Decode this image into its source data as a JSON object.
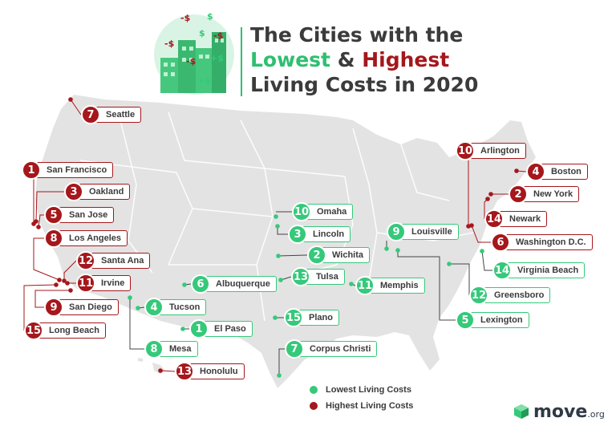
{
  "title": {
    "line1": "The Cities with the",
    "lowest": "Lowest",
    "amp": " & ",
    "highest": "Highest",
    "line3": "Living Costs in 2020"
  },
  "colors": {
    "low": "#35c97a",
    "high": "#a5171b",
    "map": "#e3e3e3",
    "text": "#3b3b3b"
  },
  "legend": {
    "low": "Lowest Living Costs",
    "high": "Highest Living Costs"
  },
  "logo": {
    "main": "move",
    "sub": ".org",
    "icon": "cube-logo-icon"
  },
  "cities": [
    {
      "id": "seattle",
      "type": "high",
      "rank": "7",
      "name": "Seattle"
    },
    {
      "id": "san-francisco",
      "type": "high",
      "rank": "1",
      "name": "San Francisco"
    },
    {
      "id": "oakland",
      "type": "high",
      "rank": "3",
      "name": "Oakland"
    },
    {
      "id": "san-jose",
      "type": "high",
      "rank": "5",
      "name": "San Jose"
    },
    {
      "id": "los-angeles",
      "type": "high",
      "rank": "8",
      "name": "Los Angeles"
    },
    {
      "id": "santa-ana",
      "type": "high",
      "rank": "12",
      "name": "Santa Ana"
    },
    {
      "id": "irvine",
      "type": "high",
      "rank": "11",
      "name": "Irvine"
    },
    {
      "id": "san-diego",
      "type": "high",
      "rank": "9",
      "name": "San Diego"
    },
    {
      "id": "long-beach",
      "type": "high",
      "rank": "15",
      "name": "Long Beach"
    },
    {
      "id": "honolulu",
      "type": "high",
      "rank": "13",
      "name": "Honolulu"
    },
    {
      "id": "arlington",
      "type": "high",
      "rank": "10",
      "name": "Arlington"
    },
    {
      "id": "boston",
      "type": "high",
      "rank": "4",
      "name": "Boston"
    },
    {
      "id": "new-york",
      "type": "high",
      "rank": "2",
      "name": "New York"
    },
    {
      "id": "newark",
      "type": "high",
      "rank": "14",
      "name": "Newark"
    },
    {
      "id": "washington-dc",
      "type": "high",
      "rank": "6",
      "name": "Washington D.C."
    },
    {
      "id": "omaha",
      "type": "low",
      "rank": "10",
      "name": "Omaha"
    },
    {
      "id": "lincoln",
      "type": "low",
      "rank": "3",
      "name": "Lincoln"
    },
    {
      "id": "wichita",
      "type": "low",
      "rank": "2",
      "name": "Wichita"
    },
    {
      "id": "tulsa",
      "type": "low",
      "rank": "13",
      "name": "Tulsa"
    },
    {
      "id": "albuquerque",
      "type": "low",
      "rank": "6",
      "name": "Albuquerque"
    },
    {
      "id": "tucson",
      "type": "low",
      "rank": "4",
      "name": "Tucson"
    },
    {
      "id": "el-paso",
      "type": "low",
      "rank": "1",
      "name": "El Paso"
    },
    {
      "id": "mesa",
      "type": "low",
      "rank": "8",
      "name": "Mesa"
    },
    {
      "id": "plano",
      "type": "low",
      "rank": "15",
      "name": "Plano"
    },
    {
      "id": "corpus-christi",
      "type": "low",
      "rank": "7",
      "name": "Corpus Christi"
    },
    {
      "id": "louisville",
      "type": "low",
      "rank": "9",
      "name": "Louisville"
    },
    {
      "id": "memphis",
      "type": "low",
      "rank": "11",
      "name": "Memphis"
    },
    {
      "id": "lexington",
      "type": "low",
      "rank": "5",
      "name": "Lexington"
    },
    {
      "id": "greensboro",
      "type": "low",
      "rank": "12",
      "name": "Greensboro"
    },
    {
      "id": "virginia-beach",
      "type": "low",
      "rank": "14",
      "name": "Virginia Beach"
    }
  ]
}
